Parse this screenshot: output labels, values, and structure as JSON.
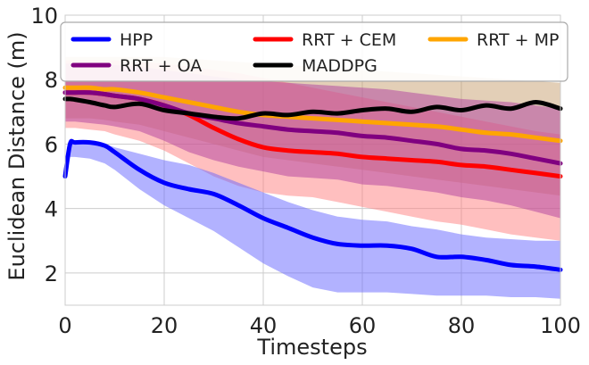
{
  "chart_data": {
    "type": "line",
    "title": "",
    "xlabel": "Timesteps",
    "ylabel": "Euclidean Distance (m)",
    "xlim": [
      0,
      100
    ],
    "ylim": [
      1,
      10
    ],
    "x_ticks": [
      0,
      20,
      40,
      60,
      80,
      100
    ],
    "y_ticks": [
      2,
      4,
      6,
      8,
      10
    ],
    "grid": true,
    "legend_position": "top",
    "x": [
      0,
      1,
      2,
      5,
      8,
      10,
      15,
      20,
      25,
      30,
      35,
      40,
      45,
      50,
      55,
      60,
      65,
      70,
      75,
      80,
      85,
      90,
      95,
      100
    ],
    "series": [
      {
        "name": "HPP",
        "color": "#0000ff",
        "band_color": "#6666ff",
        "mean": [
          5.0,
          6.0,
          6.05,
          6.05,
          5.95,
          5.75,
          5.2,
          4.8,
          4.6,
          4.45,
          4.1,
          3.7,
          3.4,
          3.1,
          2.9,
          2.85,
          2.85,
          2.75,
          2.5,
          2.5,
          2.4,
          2.25,
          2.2,
          2.1
        ],
        "upper": [
          5.4,
          6.1,
          6.1,
          6.1,
          6.0,
          5.9,
          5.7,
          5.5,
          5.35,
          5.1,
          4.8,
          4.5,
          4.2,
          3.95,
          3.75,
          3.65,
          3.6,
          3.45,
          3.35,
          3.2,
          3.1,
          3.05,
          3.0,
          3.0
        ],
        "lower": [
          5.0,
          5.6,
          5.6,
          5.55,
          5.4,
          5.2,
          4.6,
          4.1,
          3.7,
          3.3,
          2.8,
          2.3,
          1.9,
          1.55,
          1.4,
          1.4,
          1.4,
          1.35,
          1.3,
          1.3,
          1.3,
          1.25,
          1.25,
          1.2
        ]
      },
      {
        "name": "RRT + CEM",
        "color": "#ff0000",
        "band_color": "#ff8080",
        "mean": [
          7.6,
          7.6,
          7.6,
          7.6,
          7.55,
          7.5,
          7.4,
          7.2,
          6.9,
          6.5,
          6.15,
          5.9,
          5.8,
          5.75,
          5.7,
          5.6,
          5.55,
          5.5,
          5.45,
          5.35,
          5.3,
          5.2,
          5.1,
          5.0
        ],
        "upper": [
          8.6,
          8.6,
          8.6,
          8.6,
          8.6,
          8.6,
          8.55,
          8.5,
          8.4,
          8.3,
          8.2,
          8.05,
          7.9,
          7.75,
          7.6,
          7.45,
          7.3,
          7.15,
          7.0,
          6.85,
          6.7,
          6.55,
          6.4,
          6.3
        ],
        "lower": [
          6.5,
          6.5,
          6.5,
          6.45,
          6.4,
          6.3,
          6.1,
          5.8,
          5.4,
          5.0,
          4.7,
          4.5,
          4.4,
          4.35,
          4.2,
          4.05,
          3.9,
          3.75,
          3.6,
          3.5,
          3.35,
          3.2,
          3.1,
          3.0
        ]
      },
      {
        "name": "RRT + MP",
        "color": "#ffa500",
        "band_color": "#c8a070",
        "mean": [
          7.75,
          7.75,
          7.75,
          7.75,
          7.7,
          7.7,
          7.6,
          7.45,
          7.3,
          7.15,
          7.0,
          6.9,
          6.85,
          6.8,
          6.75,
          6.7,
          6.65,
          6.6,
          6.55,
          6.45,
          6.35,
          6.3,
          6.2,
          6.1
        ],
        "upper": [
          8.7,
          8.7,
          8.7,
          8.7,
          8.7,
          8.7,
          8.7,
          8.7,
          8.65,
          8.6,
          8.55,
          8.5,
          8.45,
          8.4,
          8.35,
          8.3,
          8.25,
          8.2,
          8.15,
          8.1,
          8.05,
          8.0,
          7.95,
          7.9
        ],
        "lower": [
          6.8,
          6.8,
          6.8,
          6.8,
          6.75,
          6.7,
          6.6,
          6.4,
          6.2,
          6.0,
          5.8,
          5.6,
          5.5,
          5.4,
          5.3,
          5.2,
          5.1,
          5.0,
          4.9,
          4.8,
          4.7,
          4.6,
          4.5,
          4.4
        ]
      },
      {
        "name": "RRT + OA",
        "color": "#800080",
        "band_color": "#b040a0",
        "mean": [
          7.6,
          7.6,
          7.6,
          7.6,
          7.55,
          7.5,
          7.4,
          7.2,
          6.95,
          6.8,
          6.65,
          6.55,
          6.45,
          6.4,
          6.35,
          6.25,
          6.2,
          6.1,
          6.0,
          5.85,
          5.8,
          5.7,
          5.55,
          5.4
        ],
        "upper": [
          8.5,
          8.5,
          8.5,
          8.5,
          8.5,
          8.45,
          8.4,
          8.3,
          8.2,
          8.1,
          8.0,
          7.95,
          7.9,
          7.85,
          7.8,
          7.75,
          7.7,
          7.6,
          7.5,
          7.4,
          7.35,
          7.3,
          7.2,
          7.1
        ],
        "lower": [
          6.7,
          6.7,
          6.7,
          6.65,
          6.6,
          6.55,
          6.4,
          6.1,
          5.75,
          5.5,
          5.3,
          5.15,
          5.0,
          4.95,
          4.9,
          4.75,
          4.7,
          4.6,
          4.5,
          4.35,
          4.25,
          4.1,
          3.9,
          3.7
        ]
      },
      {
        "name": "MADDPG",
        "color": "#000000",
        "band_color": null,
        "mean": [
          7.4,
          7.4,
          7.38,
          7.3,
          7.2,
          7.15,
          7.25,
          7.05,
          6.95,
          6.85,
          6.8,
          6.95,
          6.9,
          7.0,
          6.95,
          7.05,
          7.1,
          7.0,
          7.15,
          7.05,
          7.2,
          7.1,
          7.3,
          7.1
        ],
        "upper": null,
        "lower": null
      }
    ]
  }
}
